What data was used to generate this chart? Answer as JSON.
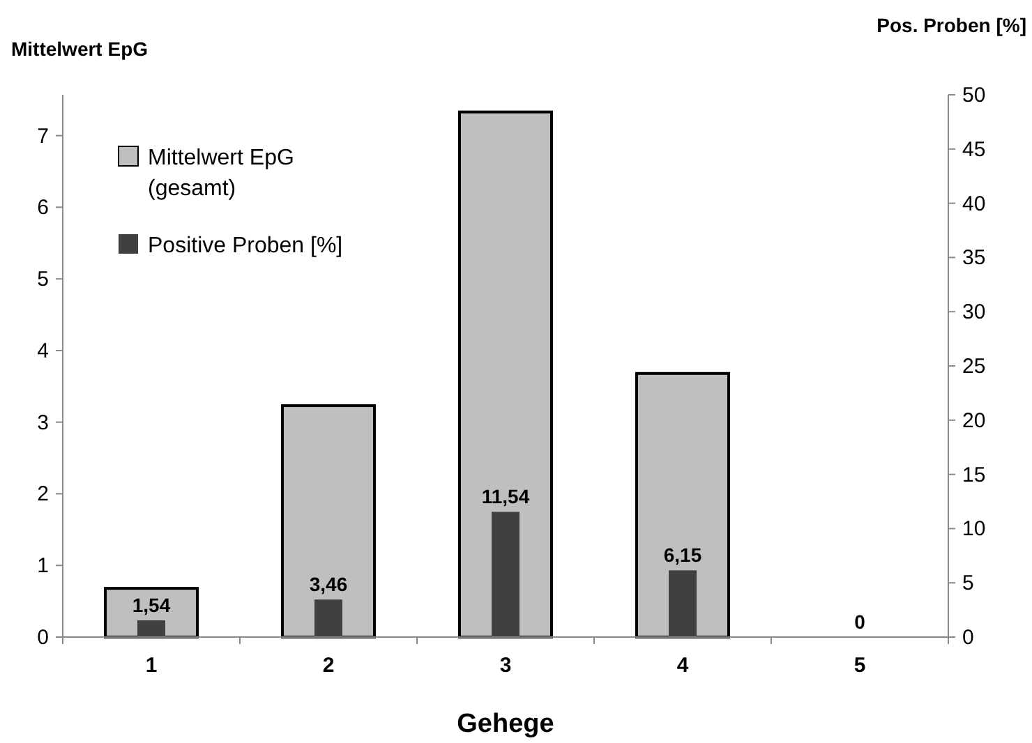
{
  "chart_data": {
    "type": "bar",
    "xlabel": "Gehege",
    "ylabel": "Mittelwert EpG",
    "y2label": "Pos. Proben [%]",
    "categories": [
      "1",
      "2",
      "3",
      "4",
      "5"
    ],
    "series": [
      {
        "name": "Mittelwert EpG (gesamt)",
        "color": "#bfbfbf",
        "values": [
          0.68,
          3.23,
          7.33,
          3.68,
          0
        ]
      },
      {
        "name": "Positive Proben [%]",
        "color": "#404040",
        "axis": "y2",
        "values": [
          1.54,
          3.46,
          11.54,
          6.15,
          0
        ],
        "value_labels": [
          "1,54",
          "3,46",
          "11,54",
          "6,15",
          "0"
        ]
      }
    ],
    "ylim": [
      0,
      7.57
    ],
    "yticks": [
      0,
      1,
      2,
      3,
      4,
      5,
      6,
      7
    ],
    "y2lim": [
      0,
      50
    ],
    "y2ticks": [
      0,
      5,
      10,
      15,
      20,
      25,
      30,
      35,
      40,
      45,
      50
    ],
    "grid": false,
    "legend": "top left"
  }
}
